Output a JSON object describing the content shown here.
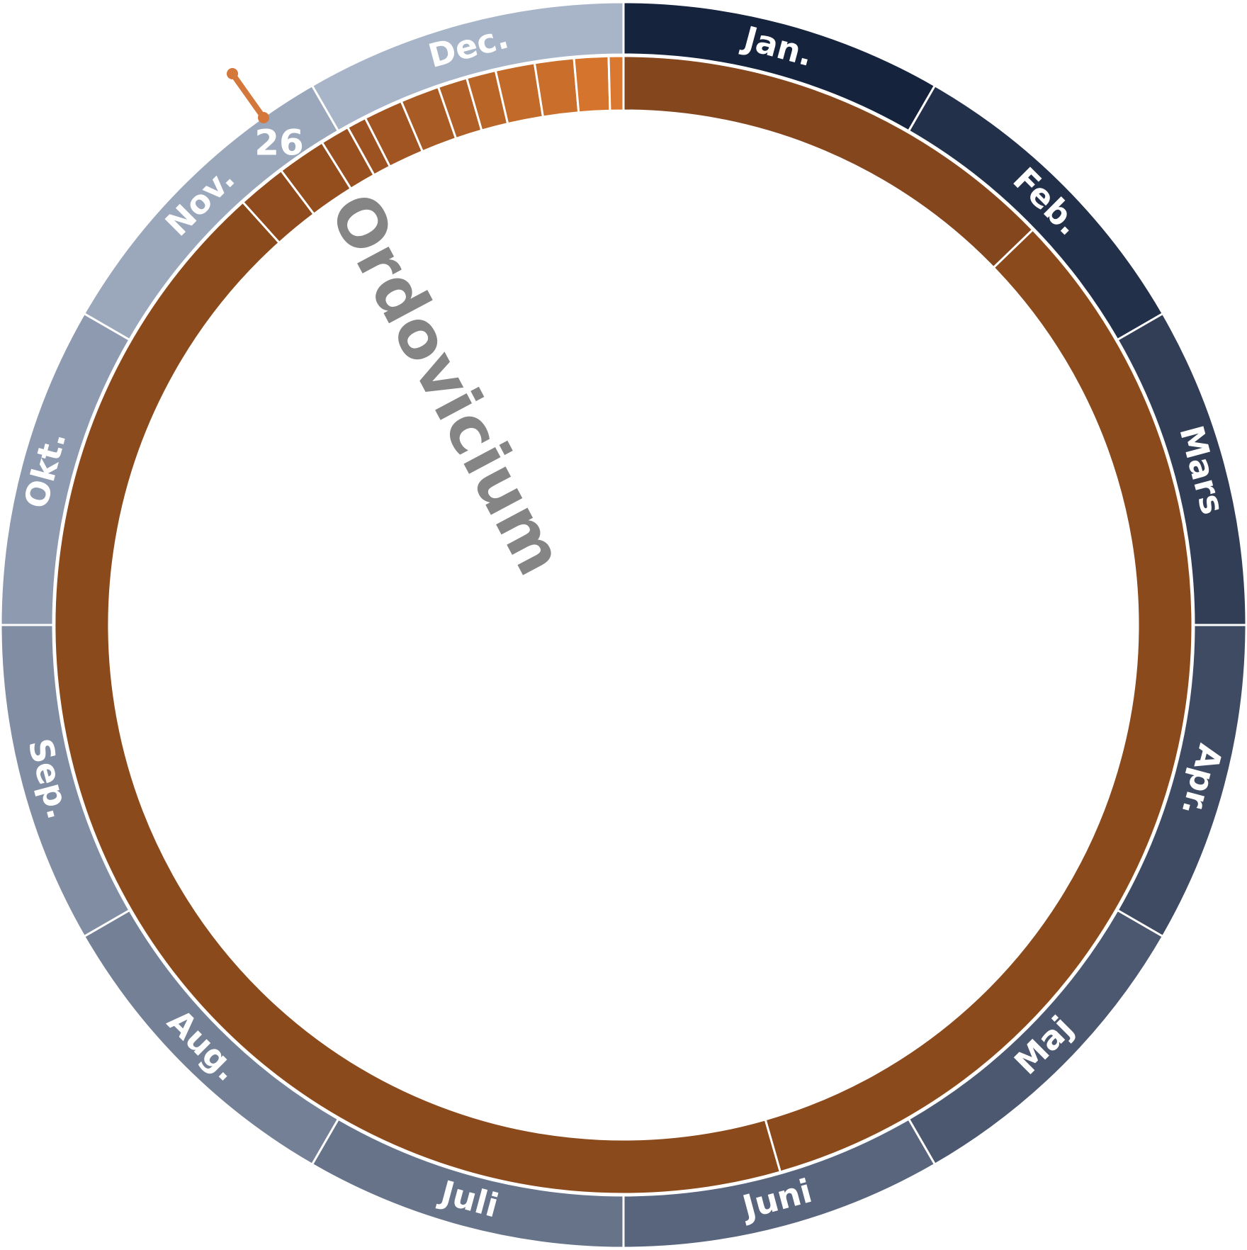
{
  "months": [
    "Jan.",
    "Feb.",
    "Mars",
    "Apr.",
    "Maj",
    "Juni",
    "Juli",
    "Aug.",
    "Sep.",
    "Okt.",
    "Nov.",
    "Dec."
  ],
  "period_label": "Ordovicium",
  "day_label": "26"
}
